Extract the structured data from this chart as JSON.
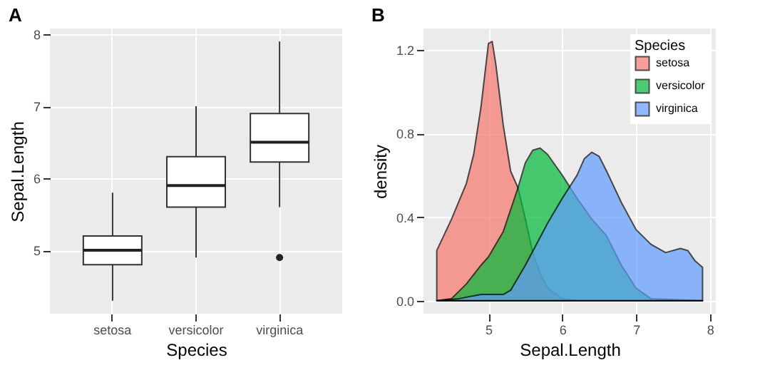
{
  "chart_data": [
    {
      "type": "box",
      "title": "A",
      "xlabel": "Species",
      "ylabel": "Sepal.Length",
      "categories": [
        "setosa",
        "versicolor",
        "virginica"
      ],
      "boxes": [
        {
          "low": 4.3,
          "q1": 4.8,
          "median": 5.0,
          "q3": 5.2,
          "high": 5.8
        },
        {
          "low": 4.9,
          "q1": 5.6,
          "median": 5.9,
          "q3": 6.3,
          "high": 7.0
        },
        {
          "low": 5.6,
          "q1": 6.225,
          "median": 6.5,
          "q3": 6.9,
          "high": 7.9,
          "outliers": [
            4.9
          ]
        }
      ],
      "ylim": [
        4.12,
        8.08
      ],
      "yticks": [
        5,
        6,
        7,
        8
      ],
      "grid": true
    },
    {
      "type": "area",
      "title": "B",
      "xlabel": "Sepal.Length",
      "ylabel": "density",
      "legend_title": "Species",
      "legend": "top right",
      "series": [
        {
          "name": "setosa",
          "color": "#f8766d",
          "x": [
            4.3,
            4.5,
            4.7,
            4.8,
            4.9,
            5.0,
            5.05,
            5.1,
            5.2,
            5.3,
            5.4,
            5.5,
            5.6,
            5.7,
            5.8,
            6.0,
            6.2,
            7.9
          ],
          "values": [
            0.24,
            0.39,
            0.56,
            0.7,
            0.93,
            1.23,
            1.24,
            1.13,
            0.84,
            0.62,
            0.54,
            0.39,
            0.23,
            0.13,
            0.06,
            0.01,
            0.0,
            0.0
          ]
        },
        {
          "name": "versicolor",
          "color": "#00ba38",
          "x": [
            4.3,
            4.5,
            4.7,
            4.9,
            5.0,
            5.2,
            5.4,
            5.5,
            5.6,
            5.7,
            5.8,
            6.0,
            6.2,
            6.4,
            6.6,
            6.8,
            7.0,
            7.2,
            7.9
          ],
          "values": [
            0.0,
            0.01,
            0.08,
            0.17,
            0.21,
            0.33,
            0.54,
            0.66,
            0.72,
            0.73,
            0.7,
            0.6,
            0.49,
            0.39,
            0.31,
            0.17,
            0.06,
            0.01,
            0.0
          ]
        },
        {
          "name": "virginica",
          "color": "#619cff",
          "x": [
            4.3,
            4.6,
            4.9,
            5.0,
            5.2,
            5.3,
            5.5,
            5.8,
            6.0,
            6.2,
            6.3,
            6.4,
            6.5,
            6.6,
            6.8,
            7.0,
            7.2,
            7.4,
            7.6,
            7.7,
            7.8,
            7.9
          ],
          "values": [
            0.0,
            0.01,
            0.03,
            0.03,
            0.03,
            0.05,
            0.17,
            0.37,
            0.49,
            0.6,
            0.68,
            0.71,
            0.69,
            0.62,
            0.47,
            0.34,
            0.27,
            0.23,
            0.25,
            0.24,
            0.19,
            0.16
          ]
        }
      ],
      "xlim": [
        4.12,
        8.08
      ],
      "xticks": [
        5,
        6,
        7,
        8
      ],
      "ylim": [
        -0.062,
        1.302
      ],
      "yticks": [
        {
          "value": 0,
          "label": "0.0"
        },
        {
          "value": 0.4,
          "label": "0.4"
        },
        {
          "value": 0.8,
          "label": "0.8"
        },
        {
          "value": 1.2,
          "label": "1.2"
        }
      ],
      "grid": true
    }
  ]
}
